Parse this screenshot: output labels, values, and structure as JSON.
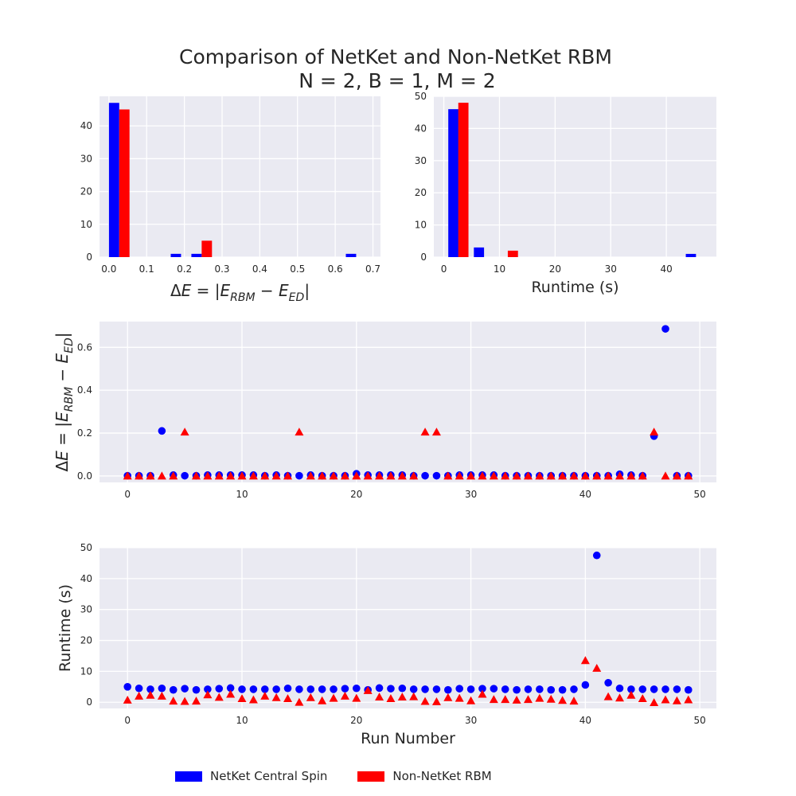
{
  "figure": {
    "title_line1": "Comparison of NetKet and Non-NetKet RBM",
    "title_line2": "N = 2, B = 1, M = 2"
  },
  "colors": {
    "netket": "#0000ff",
    "nonnetket": "#ff0000",
    "axes_bg": "#eaeaf2",
    "grid": "#ffffff"
  },
  "legend": {
    "netket_label": "NetKet Central Spin",
    "nonnetket_label": "Non-NetKet RBM"
  },
  "chart_data": [
    {
      "id": "hist_energy",
      "type": "bar",
      "xlabel": "ΔE = |E_RBM − E_ED|",
      "ylabel": "",
      "xlim": [
        -0.025,
        0.72
      ],
      "ylim": [
        0,
        49
      ],
      "xticks": [
        0.0,
        0.1,
        0.2,
        0.3,
        0.4,
        0.5,
        0.6,
        0.7
      ],
      "xtick_labels": [
        "0.0",
        "0.1",
        "0.2",
        "0.3",
        "0.4",
        "0.5",
        "0.6",
        "0.7"
      ],
      "yticks": [
        0,
        10,
        20,
        30,
        40
      ],
      "ytick_labels": [
        "0",
        "10",
        "20",
        "30",
        "40"
      ],
      "bar_width": 0.0273,
      "series": [
        {
          "name": "NetKet Central Spin",
          "color_key": "netket",
          "bars": [
            {
              "x": 0.0,
              "value": 47
            },
            {
              "x": 0.1639,
              "value": 1
            },
            {
              "x": 0.2186,
              "value": 1
            },
            {
              "x": 0.6282,
              "value": 1
            }
          ]
        },
        {
          "name": "Non-NetKet RBM",
          "color_key": "nonnetket",
          "bars": [
            {
              "x": 0.0273,
              "value": 45
            },
            {
              "x": 0.2459,
              "value": 5
            }
          ]
        }
      ]
    },
    {
      "id": "hist_runtime",
      "type": "bar",
      "xlabel": "Runtime (s)",
      "ylabel": "",
      "xlim": [
        -1.8,
        49
      ],
      "ylim": [
        0,
        50
      ],
      "xticks": [
        0,
        10,
        20,
        30,
        40
      ],
      "xtick_labels": [
        "0",
        "10",
        "20",
        "30",
        "40"
      ],
      "yticks": [
        0,
        10,
        20,
        30,
        40,
        50
      ],
      "ytick_labels": [
        "0",
        "10",
        "20",
        "30",
        "40",
        "50"
      ],
      "bar_width": 1.83,
      "series": [
        {
          "name": "NetKet Central Spin",
          "color_key": "netket",
          "bars": [
            {
              "x": 0.8,
              "value": 46
            },
            {
              "x": 5.4,
              "value": 3
            },
            {
              "x": 43.5,
              "value": 1
            }
          ]
        },
        {
          "name": "Non-NetKet RBM",
          "color_key": "nonnetket",
          "bars": [
            {
              "x": 2.6,
              "value": 48
            },
            {
              "x": 11.5,
              "value": 2
            }
          ]
        }
      ]
    },
    {
      "id": "scatter_energy",
      "type": "scatter",
      "xlabel": "",
      "ylabel": "ΔE = |E_RBM − E_ED|",
      "xlim": [
        -2.45,
        51.45
      ],
      "ylim": [
        -0.03,
        0.72
      ],
      "xticks": [
        0,
        10,
        20,
        30,
        40,
        50
      ],
      "xtick_labels": [
        "0",
        "10",
        "20",
        "30",
        "40",
        "50"
      ],
      "yticks": [
        0.0,
        0.2,
        0.4,
        0.6
      ],
      "ytick_labels": [
        "0.0",
        "0.2",
        "0.4",
        "0.6"
      ],
      "series": [
        {
          "name": "NetKet Central Spin",
          "color_key": "netket",
          "marker": "circle",
          "y": [
            0.001,
            0.001,
            0.001,
            0.21,
            0.004,
            0.001,
            0.001,
            0.004,
            0.004,
            0.004,
            0.004,
            0.004,
            0.001,
            0.004,
            0.001,
            0.001,
            0.004,
            0.001,
            0.001,
            0.001,
            0.01,
            0.004,
            0.004,
            0.004,
            0.004,
            0.001,
            0.001,
            0.001,
            0.001,
            0.004,
            0.004,
            0.004,
            0.004,
            0.001,
            0.001,
            0.001,
            0.001,
            0.001,
            0.001,
            0.001,
            0.001,
            0.001,
            0.001,
            0.008,
            0.004,
            0.001,
            0.186,
            0.686,
            0.001,
            0.001
          ]
        },
        {
          "name": "Non-NetKet RBM",
          "color_key": "nonnetket",
          "marker": "triangle",
          "y": [
            0.0,
            0.0,
            0.0,
            0.0,
            0.0,
            0.205,
            0.0,
            0.0,
            0.0,
            0.0,
            0.0,
            0.0,
            0.0,
            0.0,
            0.0,
            0.205,
            0.0,
            0.0,
            0.0,
            0.0,
            0.0,
            0.0,
            0.0,
            0.0,
            0.0,
            0.0,
            0.205,
            0.205,
            0.0,
            0.0,
            0.0,
            0.0,
            0.0,
            0.0,
            0.0,
            0.0,
            0.0,
            0.0,
            0.0,
            0.0,
            0.0,
            0.0,
            0.0,
            0.0,
            0.0,
            0.0,
            0.205,
            0.0,
            0.0,
            0.0
          ]
        }
      ]
    },
    {
      "id": "scatter_runtime",
      "type": "scatter",
      "xlabel": "Run Number",
      "ylabel": "Runtime (s)",
      "xlim": [
        -2.45,
        51.45
      ],
      "ylim": [
        -2.0,
        50.0
      ],
      "xticks": [
        0,
        10,
        20,
        30,
        40,
        50
      ],
      "xtick_labels": [
        "0",
        "10",
        "20",
        "30",
        "40",
        "50"
      ],
      "yticks": [
        0,
        10,
        20,
        30,
        40,
        50
      ],
      "ytick_labels": [
        "0",
        "10",
        "20",
        "30",
        "40",
        "50"
      ],
      "series": [
        {
          "name": "NetKet Central Spin",
          "color_key": "netket",
          "marker": "circle",
          "y": [
            5.0,
            4.5,
            4.2,
            4.5,
            4.0,
            4.4,
            4.0,
            4.2,
            4.4,
            4.6,
            4.2,
            4.2,
            4.2,
            4.2,
            4.5,
            4.2,
            4.2,
            4.2,
            4.2,
            4.4,
            4.5,
            4.0,
            4.6,
            4.4,
            4.5,
            4.2,
            4.2,
            4.2,
            4.0,
            4.4,
            4.2,
            4.4,
            4.4,
            4.2,
            4.0,
            4.2,
            4.2,
            4.0,
            4.0,
            4.2,
            5.6,
            47.5,
            6.3,
            4.5,
            4.2,
            4.2,
            4.2,
            4.2,
            4.2,
            4.0
          ]
        },
        {
          "name": "Non-NetKet RBM",
          "color_key": "nonnetket",
          "marker": "triangle",
          "y": [
            0.7,
            2.0,
            2.3,
            2.0,
            0.4,
            0.3,
            0.4,
            2.4,
            1.6,
            2.6,
            1.2,
            0.8,
            2.0,
            1.5,
            1.2,
            0.0,
            1.5,
            0.5,
            1.3,
            2.0,
            1.3,
            3.8,
            1.7,
            1.2,
            1.7,
            1.8,
            0.3,
            0.2,
            1.5,
            1.3,
            0.5,
            2.6,
            0.9,
            0.9,
            0.7,
            0.9,
            1.3,
            1.0,
            0.6,
            0.4,
            13.5,
            11.0,
            1.8,
            1.4,
            2.3,
            1.2,
            -0.1,
            0.8,
            0.5,
            0.8
          ]
        }
      ]
    }
  ]
}
